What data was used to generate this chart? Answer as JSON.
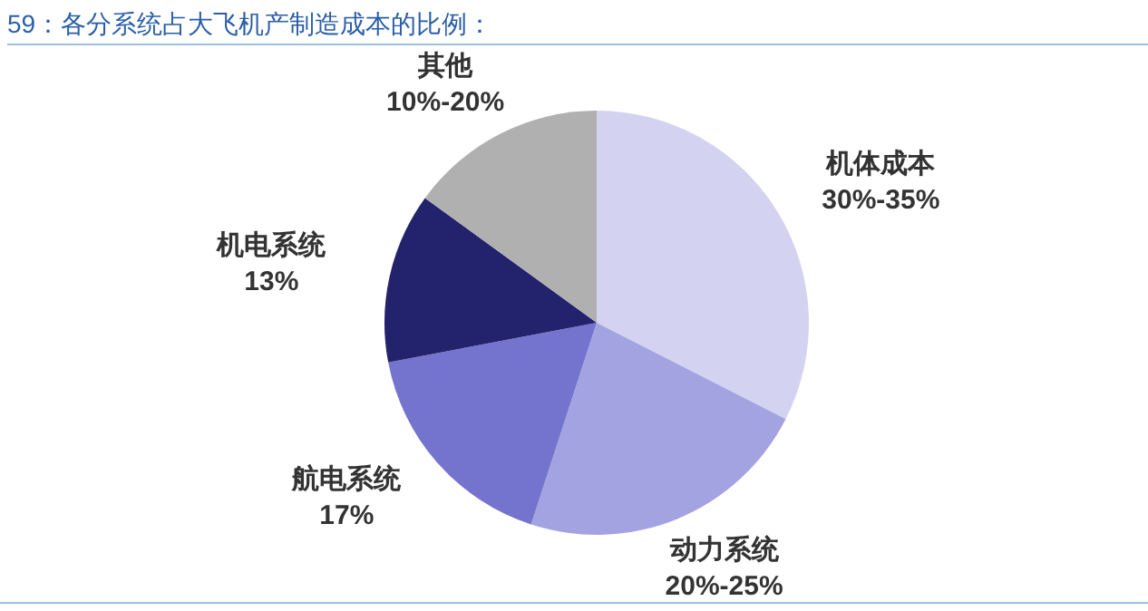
{
  "chart_data": {
    "type": "pie",
    "title": "59：各分系统占大飞机产制造成本的比例：",
    "categories": [
      "机体成本\n30%-35%",
      "动力系统\n20%-25%",
      "航电系统\n17%",
      "机电系统\n13%",
      "其他\n10%-20%"
    ],
    "values": [
      32.5,
      22.5,
      17,
      13,
      15
    ],
    "colors": [
      "#d3d3f1",
      "#a3a3e1",
      "#7474ce",
      "#23226c",
      "#b0b0b0"
    ]
  }
}
